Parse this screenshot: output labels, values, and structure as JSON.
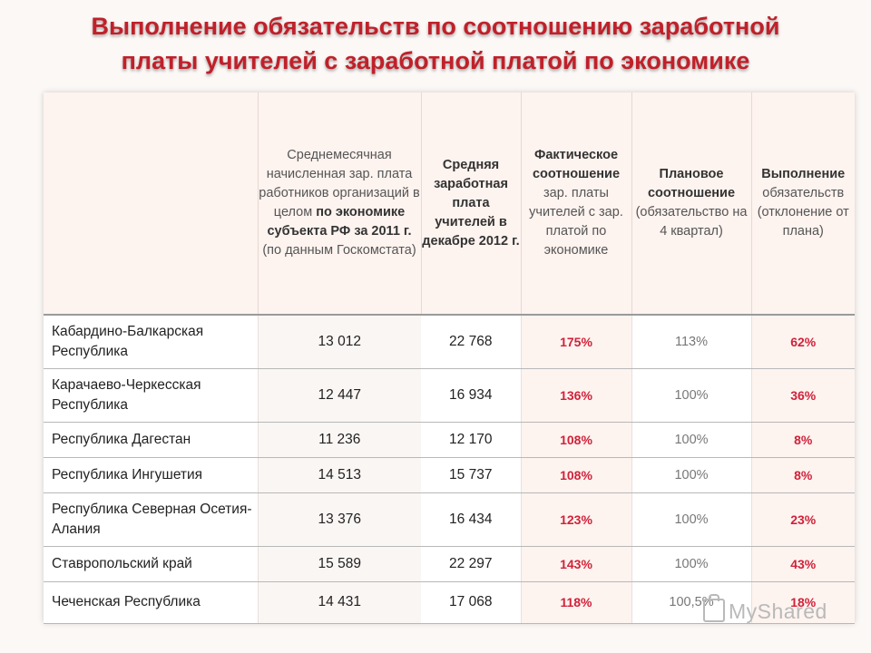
{
  "title": {
    "line1": "Выполнение обязательств по соотношению заработной",
    "line2": "платы учителей с заработной платой по экономике"
  },
  "header": {
    "col1": {
      "p1": "Среднемесячная начисленная зар. плата работников организаций в целом ",
      "bold": "по экономике субъекта РФ за 2011 г.",
      "p2": " (по данным Госкомстата)"
    },
    "col2": {
      "bold": "Средняя заработная плата учителей в декабре 2012 г."
    },
    "col3": {
      "bold": "Фактическое соотношение",
      "p2": " зар. платы учителей с зар. платой по экономике"
    },
    "col4": {
      "bold": "Плановое соотношение",
      "p2": " (обязательство на 4 квартал)"
    },
    "col5": {
      "bold": "Выполнение",
      "p2": " обязательств (отклонение от плана)"
    }
  },
  "rows": [
    {
      "region": "Кабардино-Балкарская Республика",
      "econ": "13 012",
      "teacher": "22 768",
      "actual": "175%",
      "plan": "113%",
      "exec": "62%"
    },
    {
      "region": "Карачаево-Черкесская Республика",
      "econ": "12 447",
      "teacher": "16 934",
      "actual": "136%",
      "plan": "100%",
      "exec": "36%"
    },
    {
      "region": "Республика Дагестан",
      "econ": "11 236",
      "teacher": "12 170",
      "actual": "108%",
      "plan": "100%",
      "exec": "8%"
    },
    {
      "region": "Республика Ингушетия",
      "econ": "14 513",
      "teacher": "15 737",
      "actual": "108%",
      "plan": "100%",
      "exec": "8%"
    },
    {
      "region": "Республика Северная Осетия-Алания",
      "econ": "13 376",
      "teacher": "16 434",
      "actual": "123%",
      "plan": "100%",
      "exec": "23%"
    },
    {
      "region": "Ставропольский край",
      "econ": "15 589",
      "teacher": "22 297",
      "actual": "143%",
      "plan": "100%",
      "exec": "43%"
    },
    {
      "region": "Чеченская Республика",
      "econ": "14 431",
      "teacher": "17 068",
      "actual": "118%",
      "plan": "100,5%",
      "exec": "18%"
    }
  ],
  "watermark": "MyShared"
}
